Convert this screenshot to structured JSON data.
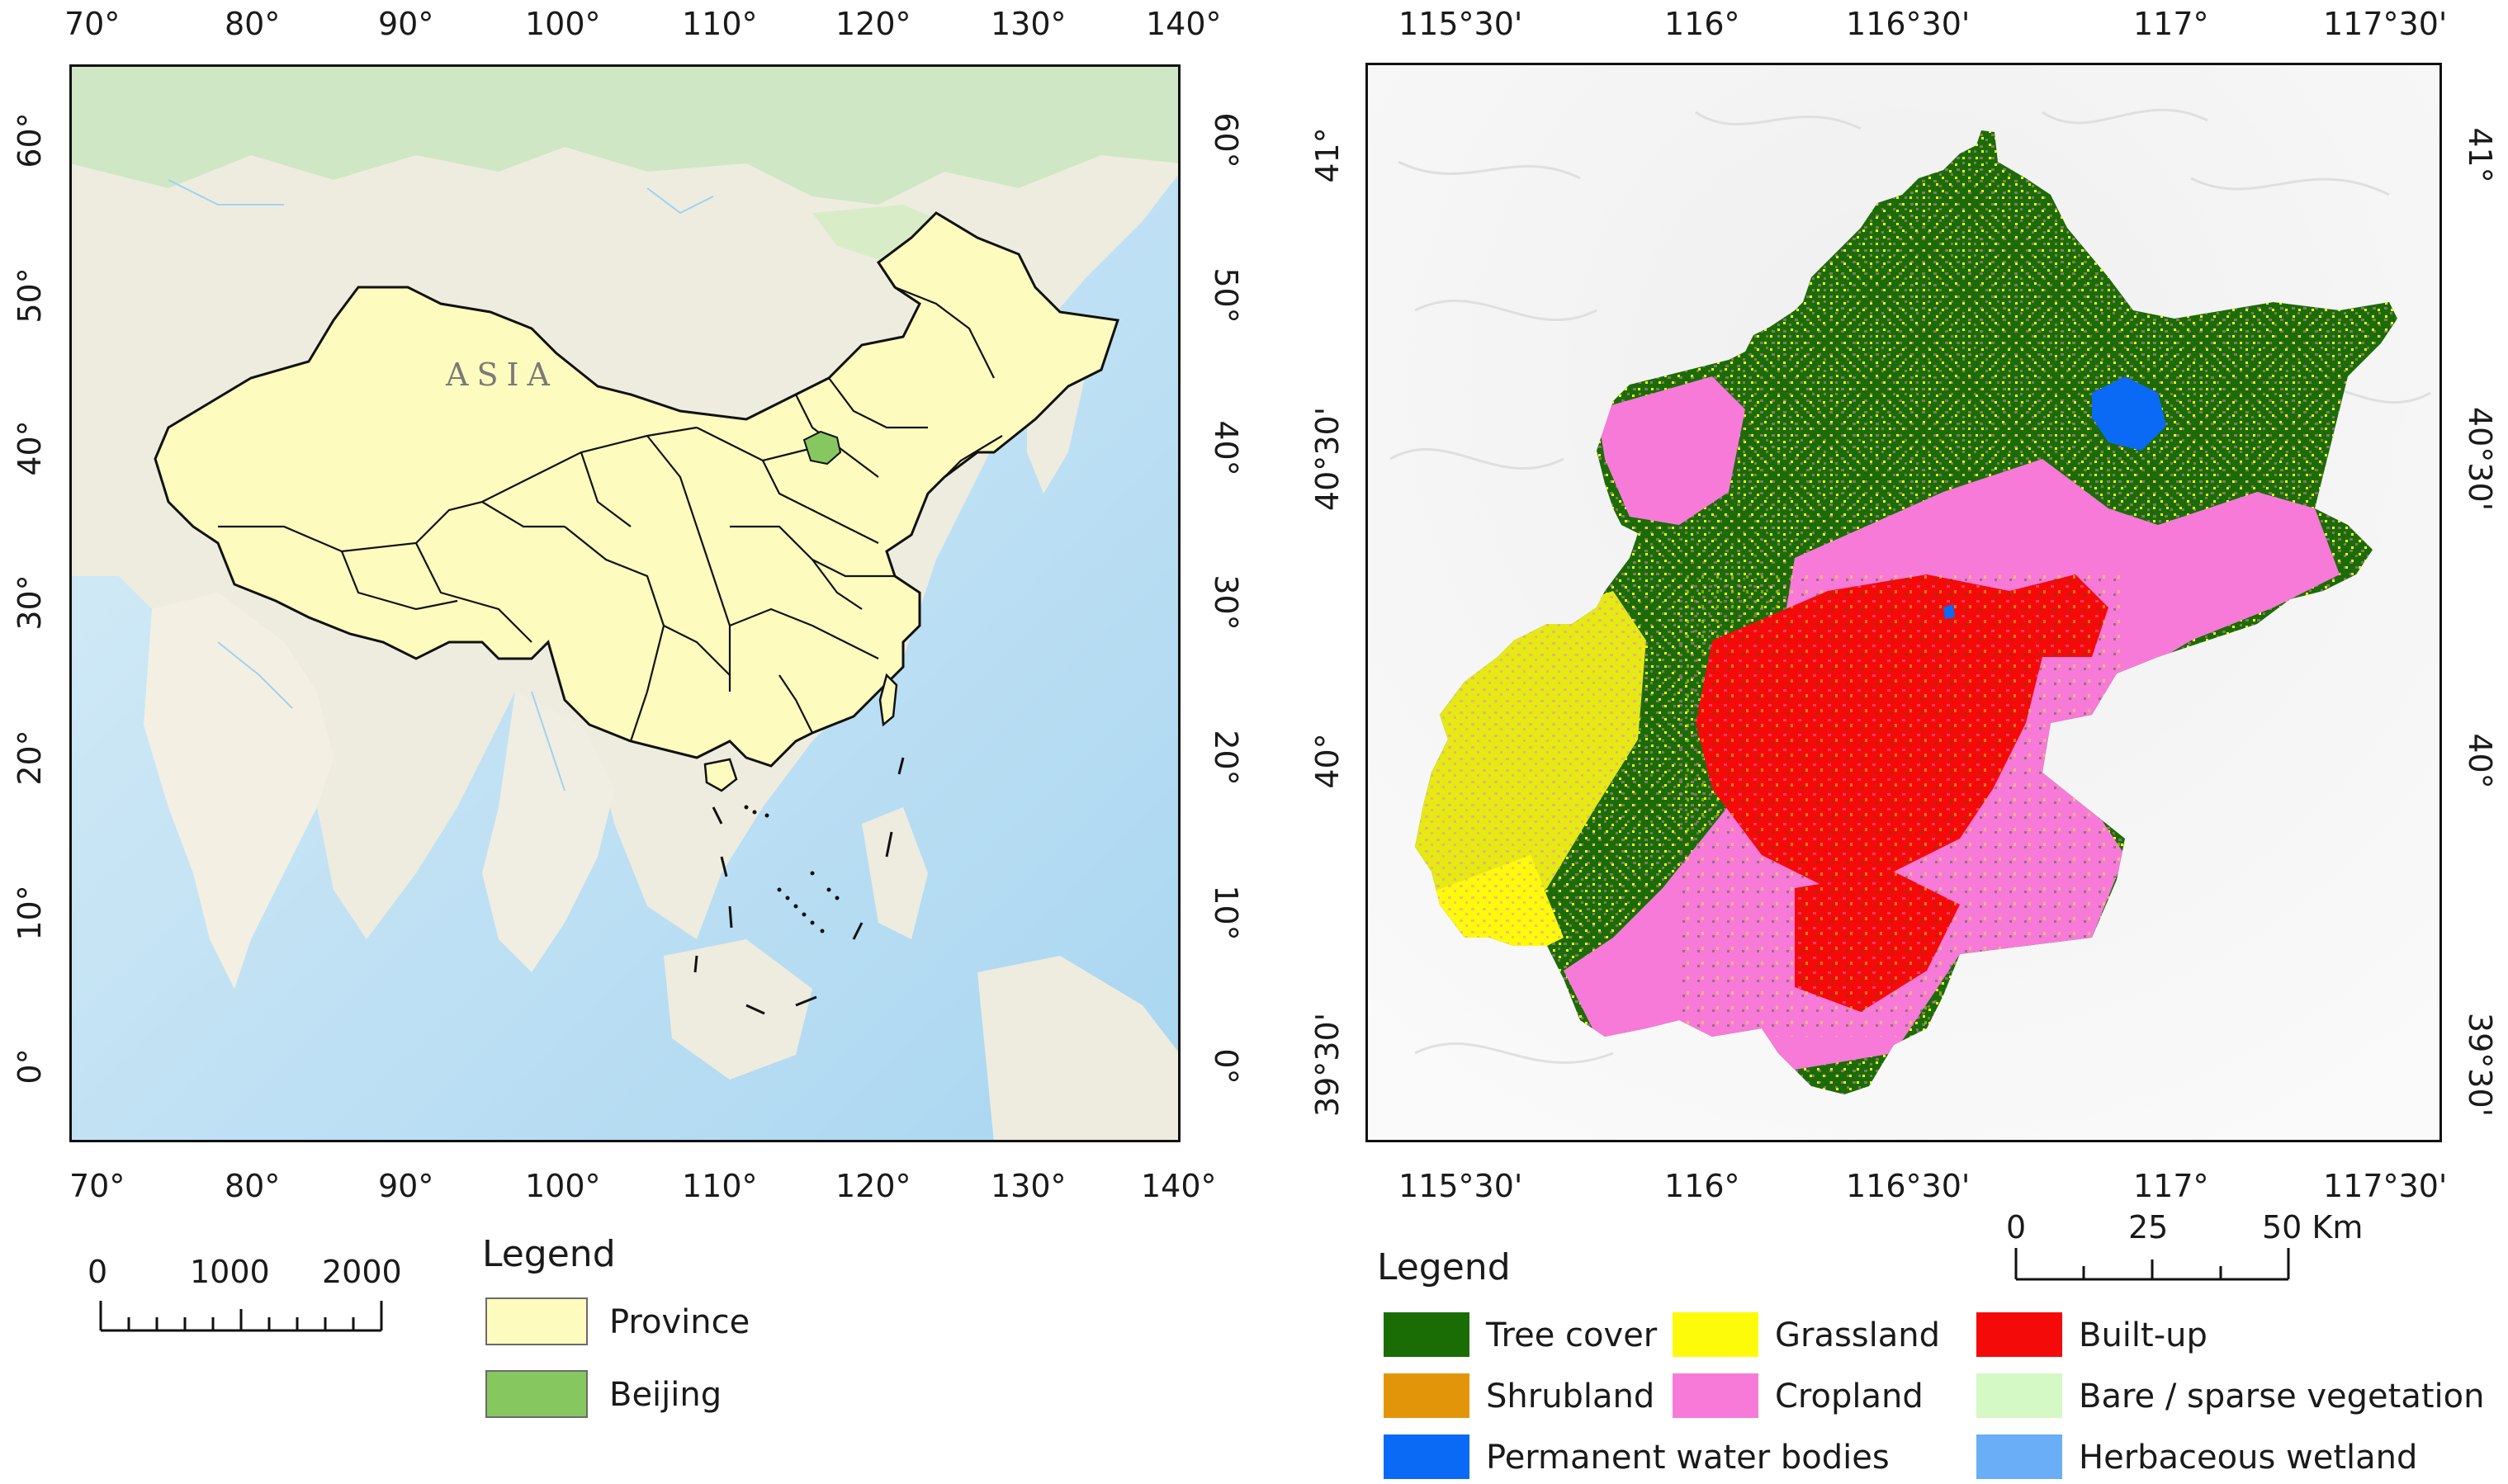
{
  "left_map": {
    "region_label": "ASIA",
    "x_ticks": [
      "70°",
      "80°",
      "90°",
      "100°",
      "110°",
      "120°",
      "130°",
      "140°"
    ],
    "y_ticks": [
      "60°",
      "50°",
      "40°",
      "30°",
      "20°",
      "10°",
      "0°"
    ],
    "scale_bar": {
      "labels": [
        "0",
        "1000",
        "2000"
      ]
    },
    "legend": {
      "title": "Legend",
      "items": [
        {
          "label": "Province",
          "color": "#fdfbbd"
        },
        {
          "label": "Beijing",
          "color": "#86c75f"
        }
      ]
    }
  },
  "right_map": {
    "x_ticks": [
      "115°30'",
      "116°",
      "116°30'",
      "117°",
      "117°30'"
    ],
    "y_ticks": [
      "41°",
      "40°30'",
      "40°",
      "39°30'"
    ],
    "scale_bar": {
      "labels": [
        "0",
        "25",
        "50 Km"
      ]
    },
    "legend": {
      "title": "Legend",
      "items": [
        {
          "label": "Tree cover",
          "color": "#196d04"
        },
        {
          "label": "Shrubland",
          "color": "#e3950a"
        },
        {
          "label": "Permanent water bodies",
          "color": "#0a6af5"
        },
        {
          "label": "Grassland",
          "color": "#fefb0a"
        },
        {
          "label": "Cropland",
          "color": "#f77ad9"
        },
        {
          "label": "Built-up",
          "color": "#f50a0a"
        },
        {
          "label": "Bare / sparse vegetation",
          "color": "#d5f9c5"
        },
        {
          "label": "Herbaceous wetland",
          "color": "#6aaef7"
        }
      ]
    }
  }
}
